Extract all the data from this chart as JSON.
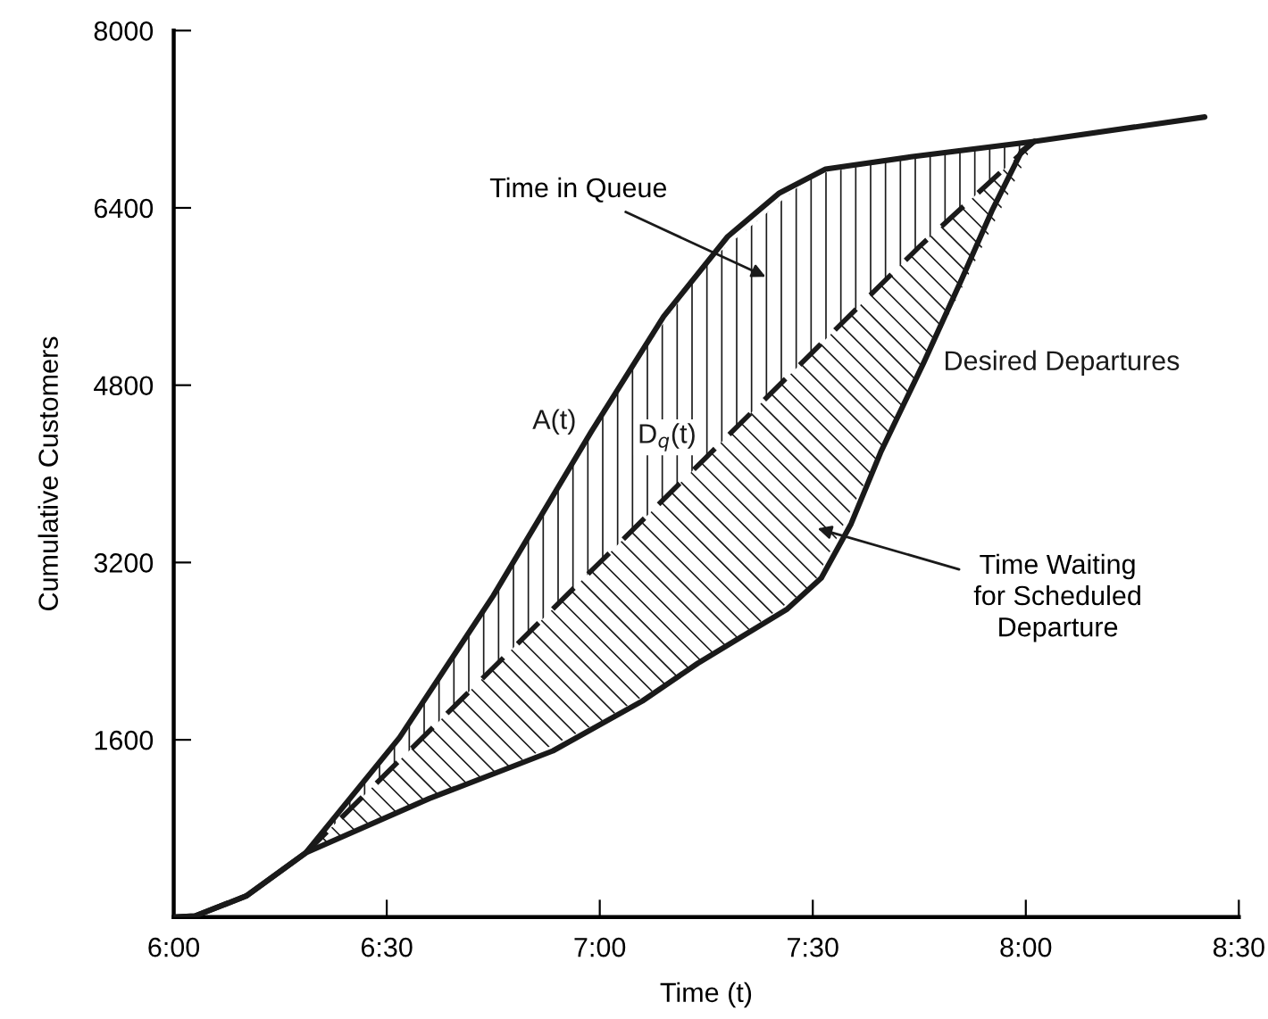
{
  "chart_data": {
    "type": "line",
    "xlabel": "Time (t)",
    "ylabel": "Cumulative Customers",
    "xlim": [
      6,
      8.5
    ],
    "ylim": [
      0,
      8000
    ],
    "xticks": [
      {
        "value": 6,
        "label": "6:00"
      },
      {
        "value": 6.5,
        "label": "6:30"
      },
      {
        "value": 7,
        "label": "7:00"
      },
      {
        "value": 7.5,
        "label": "7:30"
      },
      {
        "value": 8,
        "label": "8:00"
      },
      {
        "value": 8.5,
        "label": "8:30"
      }
    ],
    "yticks": [
      1600,
      3200,
      4800,
      6400,
      8000
    ],
    "grid": false,
    "marker": "none",
    "series": [
      {
        "name": "A(t)",
        "color": "#1a1a1a",
        "line_style": "solid",
        "x": [
          6.0,
          6.05,
          6.17,
          6.31,
          6.53,
          6.75,
          6.98,
          7.15,
          7.3,
          7.42,
          7.53,
          7.73,
          8.02,
          8.42
        ],
        "values": [
          0,
          10,
          190,
          580,
          1620,
          2900,
          4380,
          5420,
          6140,
          6530,
          6750,
          6860,
          7000,
          7220
        ]
      },
      {
        "name": "D$_{q}$(t)",
        "color": "#1a1a1a",
        "line_style": "dashed",
        "x": [
          6.31,
          6.5,
          6.75,
          7.0,
          7.25,
          7.5,
          7.75,
          8.02
        ],
        "values": [
          580,
          1300,
          2250,
          3200,
          4150,
          5100,
          6050,
          7000
        ],
        "upper": [
          580,
          1480,
          2900,
          4550,
          5900,
          6700,
          6870,
          7000
        ],
        "lower": [
          580,
          900,
          1290,
          1760,
          2330,
          2990,
          4900,
          7000
        ]
      },
      {
        "name": "Desired Departures",
        "color": "#1a1a1a",
        "line_style": "solid",
        "x": [
          6.0,
          6.05,
          6.17,
          6.31,
          6.6,
          6.89,
          7.1,
          7.23,
          7.44,
          7.52,
          7.59,
          7.66,
          7.76,
          7.85,
          7.92,
          7.99,
          8.02
        ],
        "values": [
          0,
          10,
          190,
          580,
          1070,
          1500,
          1950,
          2290,
          2780,
          3060,
          3550,
          4200,
          5000,
          5760,
          6370,
          6910,
          7000
        ]
      }
    ],
    "annotations": [
      "Time in Queue",
      "Time Waiting\nfor Scheduled\nDeparture"
    ]
  }
}
